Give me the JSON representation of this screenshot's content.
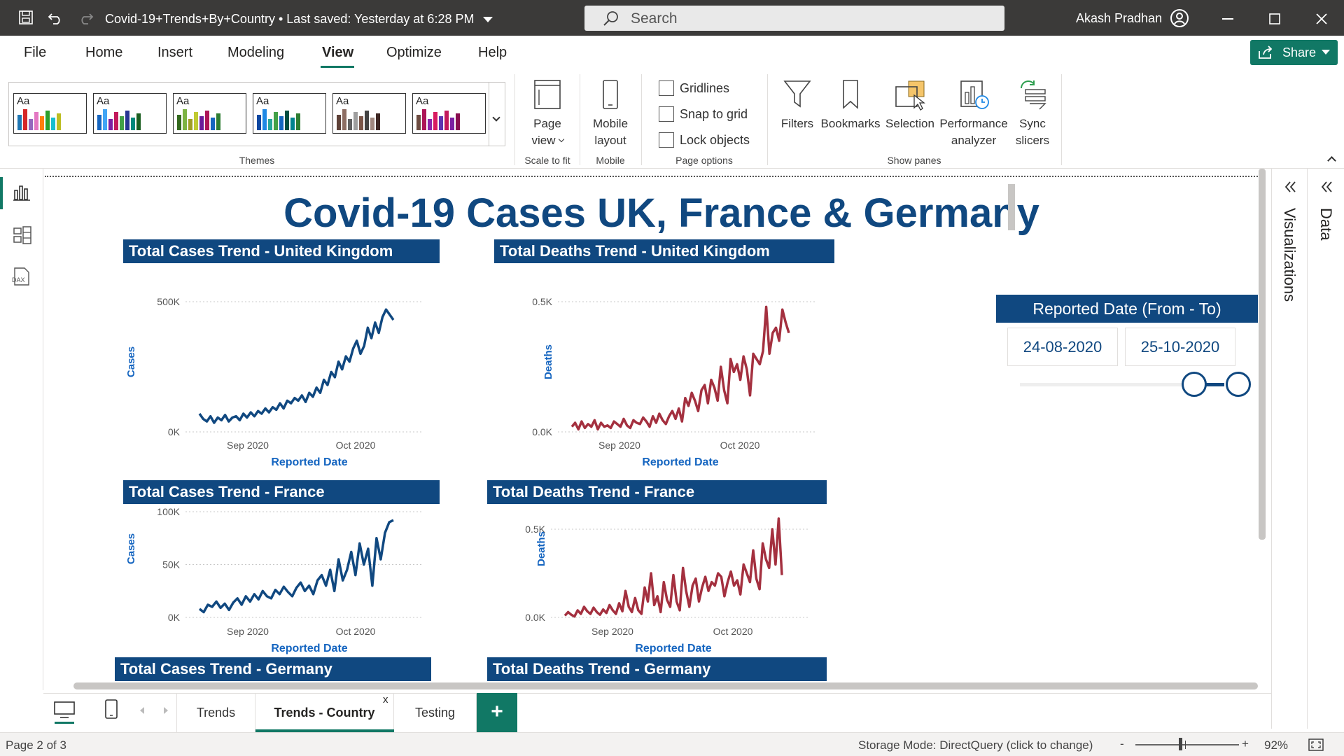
{
  "titlebar": {
    "file_title": "Covid-19+Trends+By+Country",
    "saved": "Last saved: Yesterday at 6:28 PM",
    "search_placeholder": "Search",
    "user_name": "Akash Pradhan"
  },
  "menu": {
    "items": [
      "File",
      "Home",
      "Insert",
      "Modeling",
      "View",
      "Optimize",
      "Help"
    ],
    "active": "View",
    "share_label": "Share"
  },
  "ribbon": {
    "themes_label": "Themes",
    "theme_aa": "Aa",
    "themes": [
      {
        "colors": [
          "#1f77b4",
          "#d62728",
          "#9467bd",
          "#e377c2",
          "#ff7f0e",
          "#2ca02c",
          "#17becf",
          "#bcbd22"
        ]
      },
      {
        "colors": [
          "#1565c0",
          "#42a5f5",
          "#7b1fa2",
          "#c2185b",
          "#43a047",
          "#283593",
          "#00897b",
          "#1b5e20"
        ]
      },
      {
        "colors": [
          "#33691e",
          "#7cb342",
          "#9e9d24",
          "#c0ca33",
          "#6a1b9a",
          "#ad1457",
          "#1565c0",
          "#2e7d32"
        ]
      },
      {
        "colors": [
          "#0d47a1",
          "#1e88e5",
          "#26a69a",
          "#43a047",
          "#1565c0",
          "#004d40",
          "#00838f",
          "#2e7d32"
        ]
      },
      {
        "colors": [
          "#5d4037",
          "#8d6e63",
          "#616161",
          "#9e9e9e",
          "#795548",
          "#424242",
          "#a1887f",
          "#3e2723"
        ]
      },
      {
        "colors": [
          "#6d4c41",
          "#ad1457",
          "#8e24aa",
          "#d81b60",
          "#5e35b1",
          "#c2185b",
          "#7b1fa2",
          "#880e4f"
        ]
      }
    ],
    "page_view": [
      "Page",
      "view"
    ],
    "scale_to_fit": "Scale to fit",
    "mobile_layout": [
      "Mobile",
      "layout"
    ],
    "mobile_label": "Mobile",
    "gridlines": "Gridlines",
    "snap_to_grid": "Snap to grid",
    "lock_objects": "Lock objects",
    "page_options": "Page options",
    "filters": "Filters",
    "bookmarks": "Bookmarks",
    "selection": "Selection",
    "performance": [
      "Performance",
      "analyzer"
    ],
    "sync": [
      "Sync",
      "slicers"
    ],
    "show_panes": "Show panes"
  },
  "report": {
    "title": "Covid-19 Cases UK, France & Germany",
    "slicer": {
      "title": "Reported Date (From - To)",
      "from": "24-08-2020",
      "to": "25-10-2020"
    }
  },
  "panes": {
    "visualizations": "Visualizations",
    "data": "Data"
  },
  "tabs": {
    "items": [
      "Trends",
      "Trends - Country",
      "Testing"
    ],
    "active": "Trends - Country",
    "close": "x",
    "add": "+"
  },
  "status": {
    "page": "Page 2 of 3",
    "storage": "Storage Mode: DirectQuery (click to change)",
    "zoom": "92%",
    "minus": "-",
    "plus": "+"
  },
  "chart_data": [
    {
      "type": "line",
      "title": "Total Cases Trend - United Kingdom",
      "xlabel": "Reported Date",
      "ylabel": "Cases",
      "x_ticks": [
        "Sep 2020",
        "Oct 2020"
      ],
      "y_ticks": [
        "0K",
        "500K"
      ],
      "ylim": [
        0,
        500000
      ],
      "color": "#104880",
      "values": [
        70000,
        50000,
        40000,
        60000,
        35000,
        55000,
        45000,
        65000,
        40000,
        55000,
        60000,
        45000,
        70000,
        55000,
        75000,
        60000,
        80000,
        70000,
        90000,
        75000,
        95000,
        85000,
        110000,
        90000,
        120000,
        110000,
        130000,
        120000,
        140000,
        115000,
        150000,
        135000,
        170000,
        150000,
        200000,
        180000,
        230000,
        210000,
        270000,
        240000,
        290000,
        270000,
        320000,
        350000,
        300000,
        330000,
        400000,
        360000,
        420000,
        380000,
        440000,
        470000,
        450000,
        430000
      ]
    },
    {
      "type": "line",
      "title": "Total Deaths Trend - United Kingdom",
      "xlabel": "Reported Date",
      "ylabel": "Deaths",
      "x_ticks": [
        "Sep 2020",
        "Oct 2020"
      ],
      "y_ticks": [
        "0.0K",
        "0.5K"
      ],
      "ylim": [
        0,
        500
      ],
      "color": "#a4303f",
      "values": [
        20,
        35,
        10,
        40,
        15,
        30,
        20,
        45,
        10,
        35,
        20,
        25,
        15,
        40,
        30,
        20,
        50,
        25,
        15,
        45,
        35,
        30,
        55,
        40,
        20,
        60,
        35,
        70,
        45,
        30,
        60,
        80,
        50,
        90,
        40,
        130,
        100,
        150,
        120,
        80,
        160,
        180,
        110,
        200,
        170,
        120,
        250,
        160,
        110,
        280,
        230,
        260,
        200,
        290,
        240,
        140,
        300,
        280,
        260,
        310,
        480,
        300,
        380,
        400,
        350,
        470,
        420,
        380
      ]
    },
    {
      "type": "line",
      "title": "Total Cases Trend - France",
      "xlabel": "Reported Date",
      "ylabel": "Cases",
      "x_ticks": [
        "Sep 2020",
        "Oct 2020"
      ],
      "y_ticks": [
        "0K",
        "50K",
        "100K"
      ],
      "ylim": [
        0,
        100000
      ],
      "color": "#104880",
      "values": [
        8000,
        5000,
        12000,
        10000,
        15000,
        9000,
        13000,
        7000,
        14000,
        18000,
        12000,
        20000,
        15000,
        22000,
        17000,
        25000,
        20000,
        18000,
        26000,
        22000,
        29000,
        24000,
        20000,
        28000,
        33000,
        25000,
        30000,
        22000,
        35000,
        40000,
        30000,
        45000,
        25000,
        55000,
        35000,
        45000,
        62000,
        40000,
        70000,
        50000,
        65000,
        30000,
        75000,
        55000,
        80000,
        90000,
        92000
      ]
    },
    {
      "type": "line",
      "title": "Total Deaths Trend - France",
      "xlabel": "Reported Date",
      "ylabel": "Deaths",
      "x_ticks": [
        "Sep 2020",
        "Oct 2020"
      ],
      "y_ticks": [
        "0.0K",
        "0.5K"
      ],
      "ylim": [
        0,
        500
      ],
      "color": "#a4303f",
      "values": [
        10,
        30,
        15,
        5,
        40,
        20,
        60,
        35,
        20,
        55,
        30,
        15,
        45,
        25,
        70,
        40,
        20,
        80,
        35,
        150,
        60,
        30,
        110,
        40,
        20,
        170,
        90,
        250,
        70,
        120,
        30,
        200,
        100,
        60,
        240,
        90,
        40,
        280,
        150,
        60,
        180,
        220,
        90,
        170,
        230,
        150,
        200,
        180,
        250,
        230,
        120,
        200,
        260,
        180,
        210,
        130,
        300,
        250,
        200,
        380,
        220,
        160,
        420,
        330,
        280,
        500,
        300,
        560,
        240
      ]
    }
  ],
  "truncated_titles": [
    "Total Cases Trend - Germany",
    "Total Deaths Trend - Germany"
  ]
}
